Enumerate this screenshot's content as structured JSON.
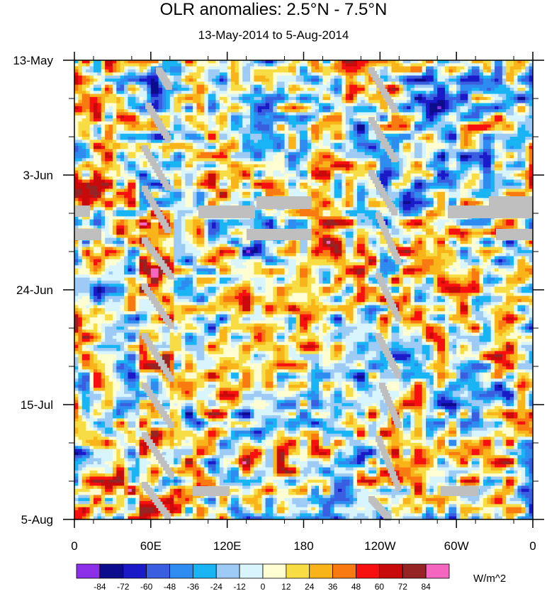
{
  "chart_data": {
    "type": "heatmap",
    "title": "OLR anomalies: 2.5°N - 7.5°N",
    "subtitle": "13-May-2014 to 5-Aug-2014",
    "x_ticks": [
      "0",
      "60E",
      "120E",
      "180",
      "120W",
      "60W",
      "0"
    ],
    "y_ticks": [
      "13-May",
      "3-Jun",
      "24-Jun",
      "15-Jul",
      "5-Aug"
    ],
    "xlim": [
      0,
      360
    ],
    "y_range": [
      "13-May-2014",
      "5-Aug-2014"
    ],
    "colorbar": {
      "levels": [
        "-84",
        "-72",
        "-60",
        "-48",
        "-36",
        "-24",
        "-12",
        "0",
        "12",
        "24",
        "36",
        "48",
        "60",
        "72",
        "84"
      ],
      "colors": [
        "#8c2fe8",
        "#0c0c8c",
        "#1a1ac8",
        "#3a5ee0",
        "#2e8bf0",
        "#18b4f4",
        "#9ecbf6",
        "#d8f4fc",
        "#fefed2",
        "#f8dc44",
        "#f8b418",
        "#f87a10",
        "#f81010",
        "#c80a0a",
        "#962424",
        "#f466c0"
      ],
      "units": "W/m^2"
    },
    "missing_color": "#bfbfbf",
    "grid": false
  }
}
